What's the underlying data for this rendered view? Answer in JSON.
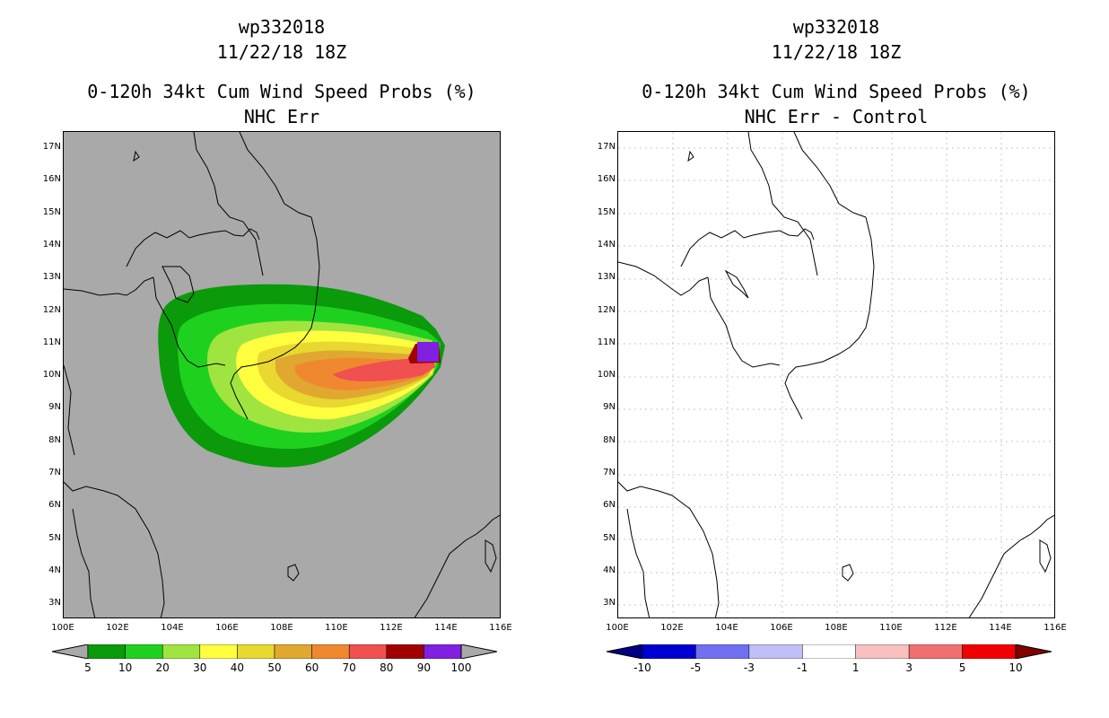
{
  "left": {
    "title_storm": "wp332018",
    "title_time": "11/22/18 18Z",
    "title_product": "0-120h 34kt Cum Wind Speed Probs (%)",
    "title_sub": "NHC Err",
    "background_color": "#a9a9a9",
    "colorbar": {
      "labels": [
        "5",
        "10",
        "20",
        "30",
        "40",
        "50",
        "60",
        "70",
        "80",
        "90",
        "100"
      ],
      "colors": [
        "#0a9a0a",
        "#1fd11f",
        "#a0e440",
        "#ffff40",
        "#e8d830",
        "#e0a830",
        "#f08830",
        "#f05050",
        "#a00000",
        "#8020e0"
      ],
      "arrow_color": "#a9a9a9"
    }
  },
  "right": {
    "title_storm": "wp332018",
    "title_time": "11/22/18 18Z",
    "title_product": "0-120h 34kt Cum Wind Speed Probs (%)",
    "title_sub": "NHC Err - Control",
    "background_color": "#ffffff",
    "colorbar": {
      "labels": [
        "-10",
        "-5",
        "-3",
        "-1",
        "1",
        "3",
        "5",
        "10"
      ],
      "colors": [
        "#0000d0",
        "#7070f0",
        "#c0c0f8",
        "#ffffff",
        "#f8c0c0",
        "#f07070",
        "#f00000"
      ],
      "arrow_left": "#000080",
      "arrow_right": "#800000"
    }
  },
  "axes": {
    "lat_labels": [
      "17N",
      "16N",
      "15N",
      "14N",
      "13N",
      "12N",
      "11N",
      "10N",
      "9N",
      "8N",
      "7N",
      "6N",
      "5N",
      "4N",
      "3N"
    ],
    "lon_labels": [
      "100E",
      "102E",
      "104E",
      "106E",
      "108E",
      "110E",
      "112E",
      "114E",
      "116E"
    ]
  }
}
